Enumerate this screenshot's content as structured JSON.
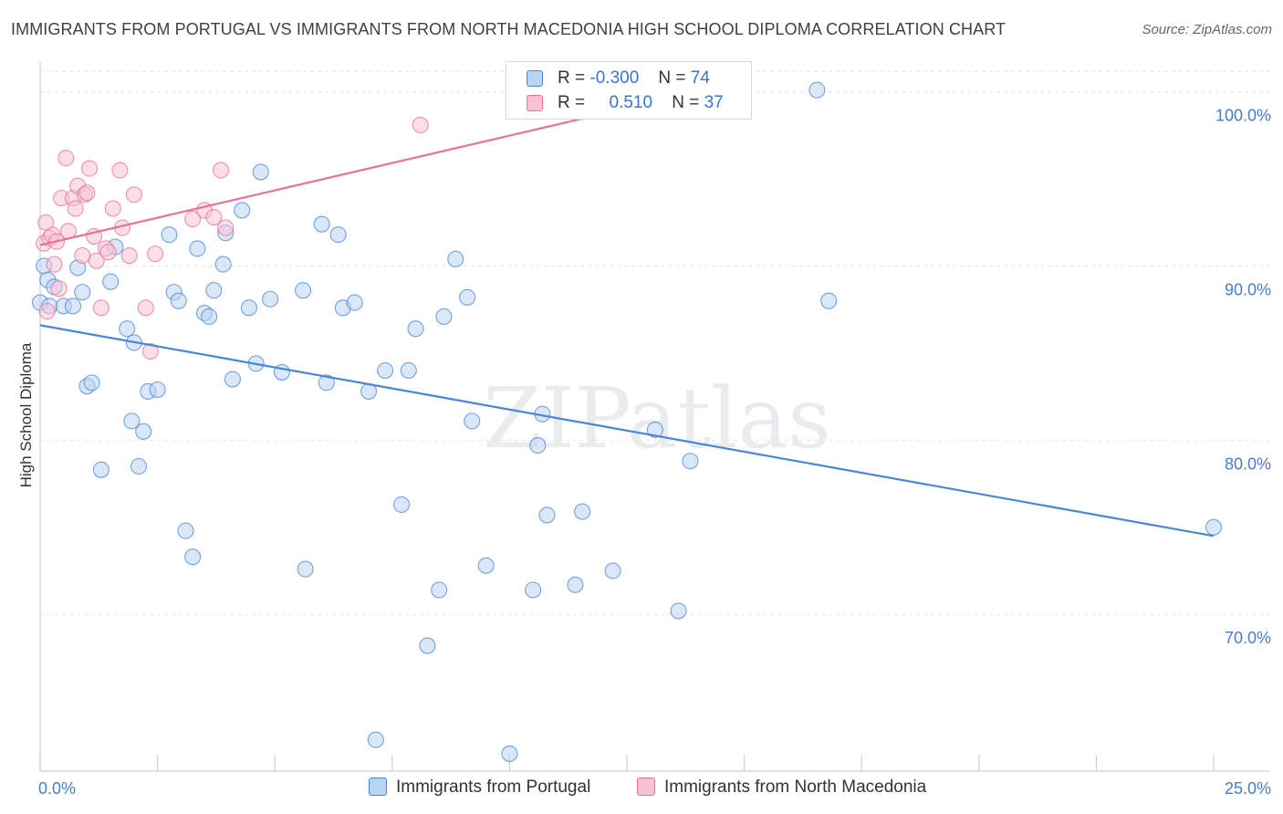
{
  "title": "IMMIGRANTS FROM PORTUGAL VS IMMIGRANTS FROM NORTH MACEDONIA HIGH SCHOOL DIPLOMA CORRELATION CHART",
  "source": "Source: ZipAtlas.com",
  "watermark": "ZIPatlas",
  "colors": {
    "blue": "#4a86d8",
    "blue_fill": "#b9d3f3",
    "pink": "#e8709a",
    "pink_fill": "#f7c3d4",
    "axis_label": "#4a7cc9"
  },
  "legend": {
    "rows": [
      {
        "r_label": "R =",
        "r_value": "-0.300",
        "n_label": "N =",
        "n_value": "74"
      },
      {
        "r_label": "R =",
        "r_value": "0.510",
        "n_label": "N =",
        "n_value": "37"
      }
    ]
  },
  "bottom_legend": [
    "Immigrants from Portugal",
    "Immigrants from North Macedonia"
  ],
  "chart_data": {
    "type": "scatter",
    "title": "IMMIGRANTS FROM PORTUGAL VS IMMIGRANTS FROM NORTH MACEDONIA HIGH SCHOOL DIPLOMA CORRELATION CHART",
    "xlabel": "",
    "ylabel": "High School Diploma",
    "xlim": [
      0,
      25
    ],
    "ylim": [
      61,
      101.5
    ],
    "x_tick_labels": [
      "0.0%",
      "25.0%"
    ],
    "y_tick_labels": [
      "70.0%",
      "80.0%",
      "90.0%",
      "100.0%"
    ],
    "y_ticks": [
      70,
      80,
      90,
      100
    ],
    "grid": true,
    "series": [
      {
        "name": "Immigrants from Portugal",
        "R": -0.3,
        "N": 74,
        "trend": {
          "x": [
            0,
            25
          ],
          "y": [
            86.6,
            74.5
          ]
        },
        "points": [
          [
            0.0,
            87.9
          ],
          [
            0.08,
            90.0
          ],
          [
            0.16,
            89.2
          ],
          [
            0.2,
            87.7
          ],
          [
            0.3,
            88.8
          ],
          [
            0.5,
            87.7
          ],
          [
            0.7,
            87.7
          ],
          [
            0.9,
            88.5
          ],
          [
            1.0,
            83.1
          ],
          [
            1.1,
            83.3
          ],
          [
            1.3,
            78.3
          ],
          [
            1.5,
            89.1
          ],
          [
            1.6,
            91.1
          ],
          [
            1.85,
            86.4
          ],
          [
            1.95,
            81.1
          ],
          [
            2.0,
            85.6
          ],
          [
            2.1,
            78.5
          ],
          [
            2.2,
            80.5
          ],
          [
            2.3,
            82.8
          ],
          [
            2.5,
            82.9
          ],
          [
            2.75,
            91.8
          ],
          [
            2.85,
            88.5
          ],
          [
            2.95,
            88.0
          ],
          [
            3.1,
            74.8
          ],
          [
            3.25,
            73.3
          ],
          [
            3.35,
            91.0
          ],
          [
            3.5,
            87.3
          ],
          [
            3.6,
            87.1
          ],
          [
            3.7,
            88.6
          ],
          [
            3.9,
            90.1
          ],
          [
            3.95,
            91.9
          ],
          [
            4.1,
            83.5
          ],
          [
            4.3,
            93.2
          ],
          [
            4.45,
            87.6
          ],
          [
            4.6,
            84.4
          ],
          [
            4.7,
            95.4
          ],
          [
            4.9,
            88.1
          ],
          [
            5.15,
            83.9
          ],
          [
            5.6,
            88.6
          ],
          [
            5.65,
            72.6
          ],
          [
            6.0,
            92.4
          ],
          [
            6.1,
            83.3
          ],
          [
            6.35,
            91.8
          ],
          [
            6.45,
            87.6
          ],
          [
            6.7,
            87.9
          ],
          [
            7.0,
            82.8
          ],
          [
            7.15,
            62.8
          ],
          [
            7.35,
            84.0
          ],
          [
            7.7,
            76.3
          ],
          [
            7.85,
            84.0
          ],
          [
            8.0,
            86.4
          ],
          [
            8.25,
            68.2
          ],
          [
            8.5,
            71.4
          ],
          [
            8.6,
            87.1
          ],
          [
            8.85,
            90.4
          ],
          [
            9.1,
            88.2
          ],
          [
            9.2,
            81.1
          ],
          [
            9.5,
            72.8
          ],
          [
            10.0,
            62.0
          ],
          [
            10.5,
            71.4
          ],
          [
            10.6,
            79.7
          ],
          [
            10.7,
            81.5
          ],
          [
            10.8,
            75.7
          ],
          [
            11.4,
            71.7
          ],
          [
            11.55,
            75.9
          ],
          [
            12.2,
            72.5
          ],
          [
            13.1,
            80.6
          ],
          [
            13.6,
            70.2
          ],
          [
            13.85,
            78.8
          ],
          [
            14.1,
            100.0
          ],
          [
            16.55,
            100.1
          ],
          [
            16.8,
            88.0
          ],
          [
            25.0,
            75.0
          ],
          [
            0.8,
            89.9
          ]
        ]
      },
      {
        "name": "Immigrants from North Macedonia",
        "R": 0.51,
        "N": 37,
        "trend": {
          "x": [
            0,
            14.0
          ],
          "y": [
            91.2,
            100.0
          ]
        },
        "points": [
          [
            0.08,
            91.3
          ],
          [
            0.15,
            87.4
          ],
          [
            0.2,
            91.6
          ],
          [
            0.25,
            91.8
          ],
          [
            0.35,
            91.4
          ],
          [
            0.4,
            88.7
          ],
          [
            0.45,
            93.9
          ],
          [
            0.55,
            96.2
          ],
          [
            0.6,
            92.0
          ],
          [
            0.7,
            93.9
          ],
          [
            0.75,
            93.3
          ],
          [
            0.8,
            94.6
          ],
          [
            0.9,
            90.6
          ],
          [
            0.95,
            94.1
          ],
          [
            1.0,
            94.2
          ],
          [
            1.05,
            95.6
          ],
          [
            1.15,
            91.7
          ],
          [
            1.2,
            90.3
          ],
          [
            1.3,
            87.6
          ],
          [
            1.4,
            91.0
          ],
          [
            1.45,
            90.8
          ],
          [
            1.55,
            93.3
          ],
          [
            1.7,
            95.5
          ],
          [
            1.75,
            92.2
          ],
          [
            1.9,
            90.6
          ],
          [
            2.0,
            94.1
          ],
          [
            2.25,
            87.6
          ],
          [
            2.35,
            85.1
          ],
          [
            2.45,
            90.7
          ],
          [
            3.25,
            92.7
          ],
          [
            3.5,
            93.2
          ],
          [
            3.7,
            92.8
          ],
          [
            3.85,
            95.5
          ],
          [
            3.95,
            92.2
          ],
          [
            8.1,
            98.1
          ],
          [
            0.3,
            90.1
          ],
          [
            0.12,
            92.5
          ]
        ]
      }
    ]
  }
}
